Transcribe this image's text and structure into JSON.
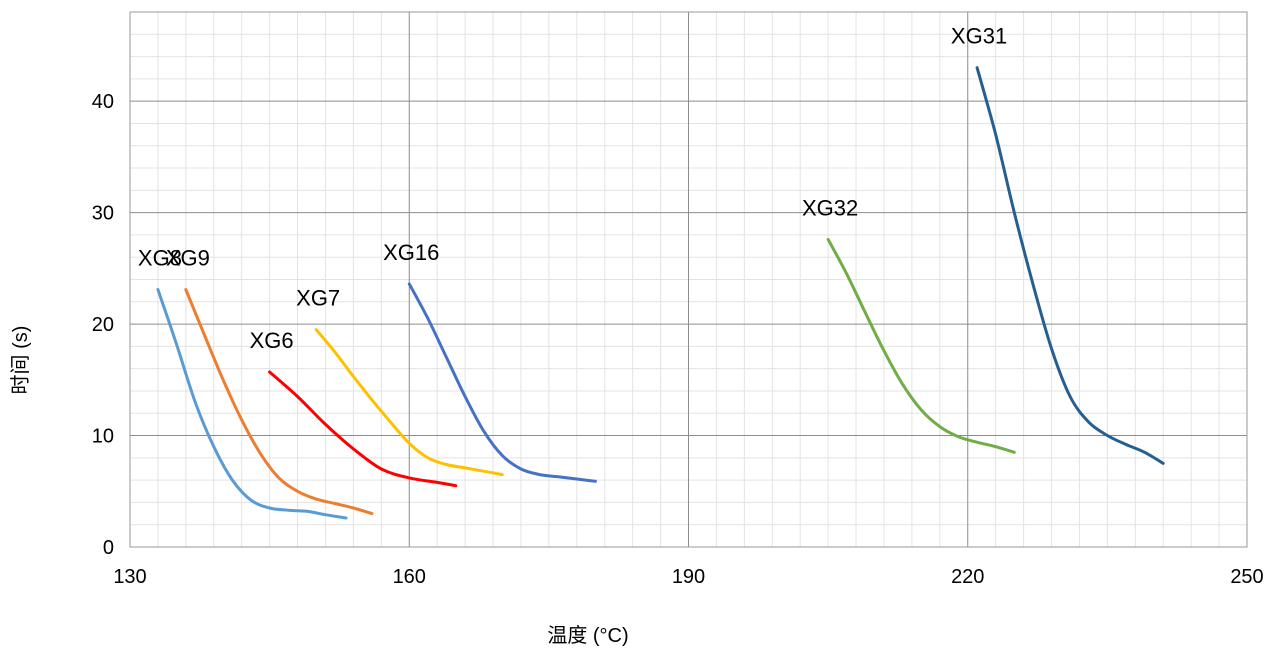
{
  "chart_data": {
    "type": "line",
    "title": "",
    "xlabel": "温度 (°C)",
    "ylabel": "时间 (s)",
    "xlim": [
      130,
      250
    ],
    "ylim": [
      0,
      48
    ],
    "x_major_ticks": [
      130,
      160,
      190,
      220,
      250
    ],
    "y_major_ticks": [
      0,
      10,
      20,
      30,
      40
    ],
    "x_minor_step": 3,
    "y_minor_step": 2,
    "grid": true,
    "legend": "none",
    "series": [
      {
        "name": "XG8",
        "color": "#5B9BD5",
        "points": [
          [
            133.0,
            23.1
          ],
          [
            135.0,
            18.2
          ],
          [
            137.0,
            13.0
          ],
          [
            139.0,
            9.0
          ],
          [
            141.0,
            6.0
          ],
          [
            143.0,
            4.2
          ],
          [
            145.0,
            3.5
          ],
          [
            147.0,
            3.3
          ],
          [
            149.0,
            3.2
          ],
          [
            151.0,
            2.9
          ],
          [
            153.2,
            2.6
          ]
        ]
      },
      {
        "name": "XG9",
        "color": "#ED7D31",
        "points": [
          [
            136.0,
            23.1
          ],
          [
            138.0,
            19.0
          ],
          [
            140.0,
            15.0
          ],
          [
            142.0,
            11.4
          ],
          [
            144.0,
            8.4
          ],
          [
            146.0,
            6.2
          ],
          [
            148.0,
            5.0
          ],
          [
            150.0,
            4.3
          ],
          [
            152.0,
            3.9
          ],
          [
            154.0,
            3.5
          ],
          [
            156.0,
            3.0
          ]
        ]
      },
      {
        "name": "XG6",
        "color": "#FF0000",
        "points": [
          [
            145.0,
            15.7
          ],
          [
            148.0,
            13.5
          ],
          [
            151.0,
            11.0
          ],
          [
            154.0,
            8.8
          ],
          [
            157.0,
            7.0
          ],
          [
            160.0,
            6.2
          ],
          [
            163.0,
            5.8
          ],
          [
            165.0,
            5.5
          ]
        ]
      },
      {
        "name": "XG7",
        "color": "#FFC000",
        "points": [
          [
            150.0,
            19.5
          ],
          [
            152.0,
            17.5
          ],
          [
            154.0,
            15.3
          ],
          [
            156.0,
            13.2
          ],
          [
            158.0,
            11.2
          ],
          [
            160.0,
            9.3
          ],
          [
            162.0,
            8.0
          ],
          [
            164.0,
            7.4
          ],
          [
            166.0,
            7.1
          ],
          [
            168.0,
            6.8
          ],
          [
            170.0,
            6.5
          ]
        ]
      },
      {
        "name": "XG16",
        "color": "#4472C4",
        "points": [
          [
            160.0,
            23.6
          ],
          [
            162.0,
            20.5
          ],
          [
            164.0,
            17.0
          ],
          [
            166.0,
            13.5
          ],
          [
            168.0,
            10.4
          ],
          [
            170.0,
            8.2
          ],
          [
            172.0,
            7.0
          ],
          [
            174.0,
            6.5
          ],
          [
            176.0,
            6.3
          ],
          [
            178.0,
            6.1
          ],
          [
            180.0,
            5.9
          ]
        ]
      },
      {
        "name": "XG32",
        "color": "#70AD47",
        "points": [
          [
            205.0,
            27.6
          ],
          [
            207.0,
            24.5
          ],
          [
            209.0,
            21.0
          ],
          [
            211.0,
            17.6
          ],
          [
            213.0,
            14.6
          ],
          [
            215.0,
            12.3
          ],
          [
            217.0,
            10.8
          ],
          [
            219.0,
            9.9
          ],
          [
            221.0,
            9.4
          ],
          [
            223.0,
            9.0
          ],
          [
            225.0,
            8.5
          ]
        ]
      },
      {
        "name": "XG31",
        "color": "#255E91",
        "points": [
          [
            221.0,
            43.0
          ],
          [
            223.0,
            37.0
          ],
          [
            225.0,
            30.0
          ],
          [
            227.0,
            23.6
          ],
          [
            229.0,
            17.8
          ],
          [
            231.0,
            13.5
          ],
          [
            233.0,
            11.2
          ],
          [
            235.0,
            10.0
          ],
          [
            237.0,
            9.2
          ],
          [
            239.0,
            8.5
          ],
          [
            241.0,
            7.5
          ]
        ]
      }
    ],
    "annotations": [
      "XG8",
      "XG9",
      "XG6",
      "XG7",
      "XG16",
      "XG32",
      "XG31"
    ]
  }
}
